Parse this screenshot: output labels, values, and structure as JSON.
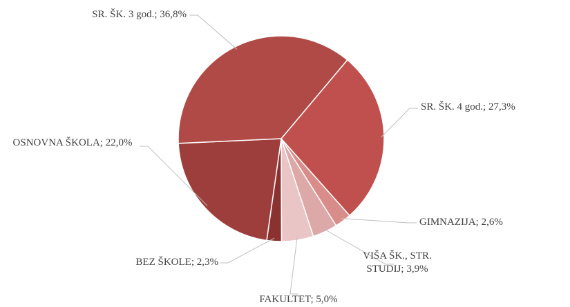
{
  "chart_data": {
    "type": "pie",
    "categories": [
      "SR. ŠK. 4 god.",
      "GIMNAZIJA",
      "VIŠA ŠK., STR. STUDIJ",
      "FAKULTET",
      "BEZ ŠKOLE",
      "OSNOVNA ŠKOLA",
      "SR. ŠK. 3 god."
    ],
    "values": [
      27.3,
      2.6,
      3.9,
      5.0,
      2.3,
      22.0,
      36.8
    ],
    "value_labels": [
      "27,3%",
      "2,6%",
      "3,9%",
      "5,0%",
      "2,3%",
      "22,0%",
      "36,8%"
    ],
    "label_separator": "; ",
    "colors": [
      "#c0504d",
      "#d98d8b",
      "#dca9a8",
      "#e9c5c5",
      "#8b3230",
      "#9e3e3c",
      "#b04a47"
    ]
  }
}
